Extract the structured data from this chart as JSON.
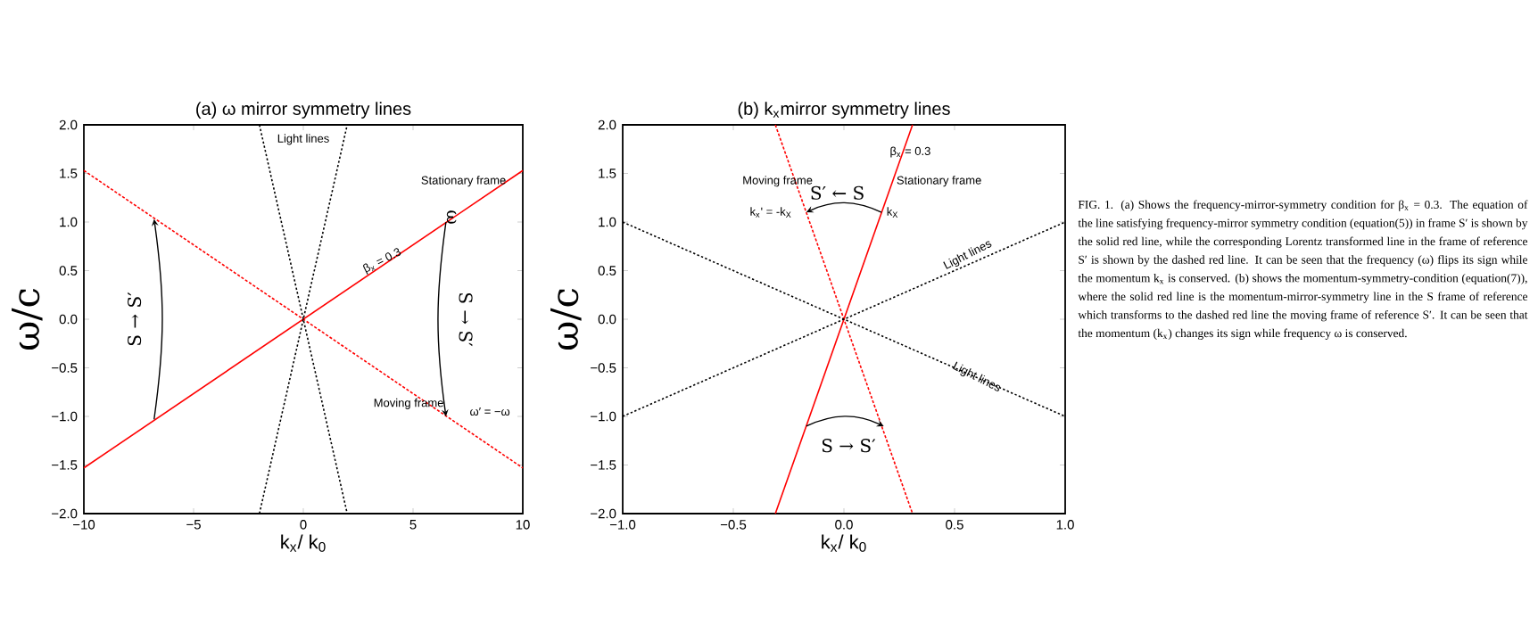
{
  "chart_data": [
    {
      "type": "line",
      "title": "(a) ω mirror symmetry lines",
      "xlabel": "k$_{x}$/ k$_{0}$",
      "ylabel": "ω/c",
      "xlim": [
        -10,
        10
      ],
      "ylim": [
        -2,
        2
      ],
      "xticks": [
        {
          "value": -10,
          "label": "−10"
        },
        {
          "value": -5,
          "label": "−5"
        },
        0,
        5,
        10
      ],
      "yticks": [
        {
          "value": -2,
          "label": "−2.0"
        },
        {
          "value": -1.5,
          "label": "−1.5"
        },
        {
          "value": -1,
          "label": "−1.0"
        },
        {
          "value": -0.5,
          "label": "−0.5"
        },
        {
          "value": 0,
          "label": "0.0"
        },
        {
          "value": 0.5,
          "label": "0.5"
        },
        {
          "value": 1,
          "label": "1.0"
        },
        {
          "value": 1.5,
          "label": "1.5"
        },
        {
          "value": 2,
          "label": "2.0"
        }
      ],
      "series": [
        {
          "type": "line",
          "color": "#ff0000",
          "line_style": "solid",
          "x": [
            -10,
            10
          ],
          "values": [
            -1.53,
            1.53
          ]
        },
        {
          "type": "line",
          "color": "#ff0000",
          "line_style": "dashed",
          "x": [
            -10,
            10
          ],
          "values": [
            1.53,
            -1.53
          ]
        },
        {
          "type": "line",
          "color": "#000000",
          "line_style": "dotted",
          "x": [
            -2,
            2
          ],
          "values": [
            -2,
            2
          ]
        },
        {
          "type": "line",
          "color": "#000000",
          "line_style": "dotted",
          "x": [
            -2,
            2
          ],
          "values": [
            2,
            -2
          ]
        }
      ],
      "annotations": [
        "Light lines",
        "Stationary frame",
        {
          "text": "β$_{x}$ = 0.3",
          "x": 3.6,
          "y": 0.6
        },
        "ω",
        "Moving frame",
        "ω′ = −ω",
        "S → S′",
        "S → S′"
      ]
    },
    {
      "type": "line",
      "title": "(b) k$_{x}$mirror symmetry lines",
      "xlabel": "k$_{x}$/ k$_{0}$",
      "ylabel": "ω/c",
      "xlim": [
        -1,
        1
      ],
      "ylim": [
        -2,
        2
      ],
      "xticks": [
        {
          "value": -1,
          "label": "−1.0"
        },
        {
          "value": -0.5,
          "label": "−0.5"
        },
        {
          "value": 0,
          "label": "0.0"
        },
        {
          "value": 0.5,
          "label": "0.5"
        },
        {
          "value": 1,
          "label": "1.0"
        }
      ],
      "yticks": [
        {
          "value": -2,
          "label": "−2.0"
        },
        {
          "value": -1.5,
          "label": "−1.5"
        },
        {
          "value": -1,
          "label": "−1.0"
        },
        {
          "value": -0.5,
          "label": "−0.5"
        },
        {
          "value": 0,
          "label": "0.0"
        },
        {
          "value": 0.5,
          "label": "0.5"
        },
        {
          "value": 1,
          "label": "1.0"
        },
        {
          "value": 1.5,
          "label": "1.5"
        },
        {
          "value": 2,
          "label": "2.0"
        }
      ],
      "series": [
        {
          "type": "line",
          "color": "#ff0000",
          "line_style": "solid",
          "x": [
            -0.31,
            0.31
          ],
          "values": [
            -2,
            2
          ]
        },
        {
          "type": "line",
          "color": "#ff0000",
          "line_style": "dashed",
          "x": [
            -0.31,
            0.31
          ],
          "values": [
            2,
            -2
          ]
        },
        {
          "type": "line",
          "color": "#000000",
          "line_style": "dotted",
          "x": [
            -1,
            1
          ],
          "values": [
            -1,
            1
          ]
        },
        {
          "type": "line",
          "color": "#000000",
          "line_style": "dotted",
          "x": [
            -1,
            1
          ],
          "values": [
            1,
            -1
          ]
        }
      ],
      "annotations": [
        {
          "text": "β$_{x}$ = 0.3",
          "x": 0.3,
          "y": 1.72
        },
        "Stationary frame",
        "Moving frame",
        "S′ ← S",
        "k$_{X}$",
        "k$_{x}$' = -k$_{X}$",
        {
          "text": "Light lines",
          "x": 0.56,
          "y": 0.66
        },
        {
          "text": "Light lines",
          "x": 0.6,
          "y": -0.6
        },
        "S → S′"
      ]
    },
    {
      "type": "other",
      "annotations": [
        "FIG. 1. (a) Shows the frequency-mirror-symmetry condition for β$_{x}$ = 0.3. The equation of the line satisfying frequency-mirror symmetry condition (equation(5)) in frame S′ is shown by the solid red line, while the corresponding Lorentz transformed line in the frame of reference S′ is shown by the dashed red line. It can be seen that the frequency (ω) flips its sign while the momentum k$_{x}$ is conserved. (b) shows the momentum-symmetry-condition (equation(7)), where the solid red line is the momentum-mirror-symmetry line in the S frame of reference which transforms to the dashed red line the moving frame of reference S′. It can be seen that the momentum (k$_{x}$) changes its sign while frequency ω is conserved."
      ]
    }
  ]
}
